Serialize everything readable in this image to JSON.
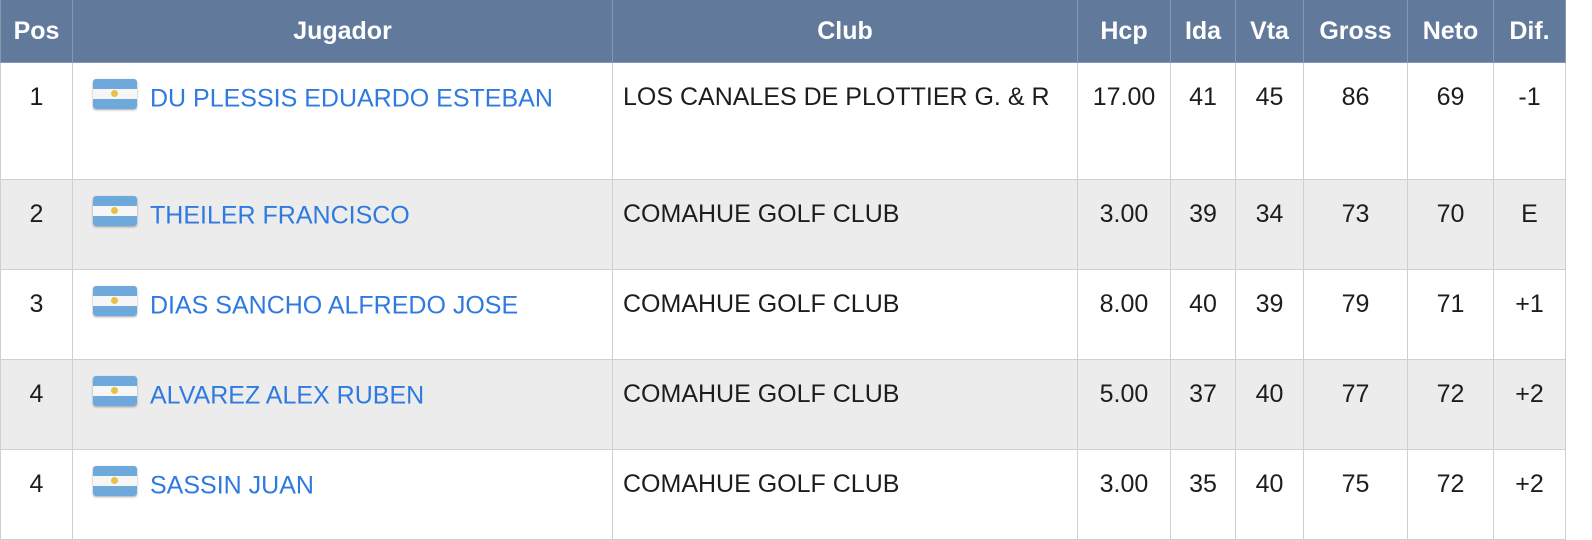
{
  "headers": {
    "pos": "Pos",
    "player": "Jugador",
    "club": "Club",
    "hcp": "Hcp",
    "ida": "Ida",
    "vta": "Vta",
    "gross": "Gross",
    "neto": "Neto",
    "dif": "Dif."
  },
  "rows": [
    {
      "pos": "1",
      "player": "DU PLESSIS EDUARDO ESTEBAN",
      "flag": "argentina-flag-icon",
      "club": "LOS CANALES DE PLOTTIER G. & R",
      "hcp": "17.00",
      "ida": "41",
      "vta": "45",
      "gross": "86",
      "neto": "69",
      "dif": "-1"
    },
    {
      "pos": "2",
      "player": "THEILER FRANCISCO",
      "flag": "argentina-flag-icon",
      "club": "COMAHUE GOLF CLUB",
      "hcp": "3.00",
      "ida": "39",
      "vta": "34",
      "gross": "73",
      "neto": "70",
      "dif": "E"
    },
    {
      "pos": "3",
      "player": "DIAS SANCHO ALFREDO JOSE",
      "flag": "argentina-flag-icon",
      "club": "COMAHUE GOLF CLUB",
      "hcp": "8.00",
      "ida": "40",
      "vta": "39",
      "gross": "79",
      "neto": "71",
      "dif": "+1"
    },
    {
      "pos": "4",
      "player": "ALVAREZ ALEX RUBEN",
      "flag": "argentina-flag-icon",
      "club": "COMAHUE GOLF CLUB",
      "hcp": "5.00",
      "ida": "37",
      "vta": "40",
      "gross": "77",
      "neto": "72",
      "dif": "+2"
    },
    {
      "pos": "4",
      "player": "SASSIN JUAN",
      "flag": "argentina-flag-icon",
      "club": "COMAHUE GOLF CLUB",
      "hcp": "3.00",
      "ida": "35",
      "vta": "40",
      "gross": "75",
      "neto": "72",
      "dif": "+2"
    }
  ],
  "colors": {
    "header_bg": "#617a9b",
    "header_text": "#ffffff",
    "link": "#2f7ae0",
    "row_alt": "#ececec"
  }
}
